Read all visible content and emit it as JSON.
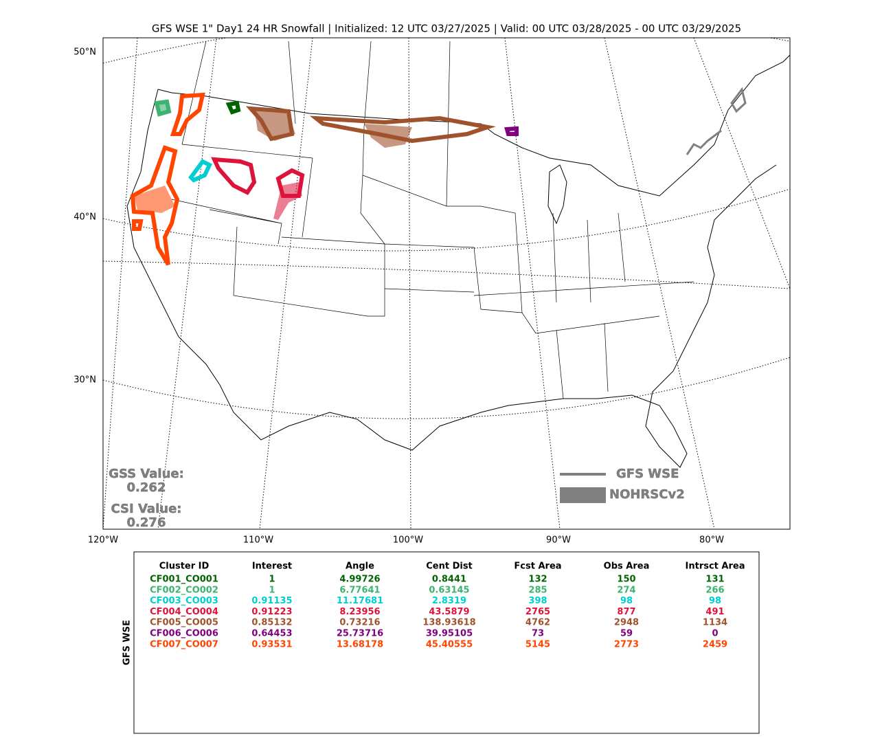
{
  "title": "GFS WSE 1\" Day1 24 HR Snowfall | Initialized: 12 UTC 03/27/2025 | Valid: 00 UTC 03/28/2025 - 00 UTC 03/29/2025",
  "map": {
    "lat_labels": [
      "50°N",
      "40°N",
      "30°N"
    ],
    "lon_labels": [
      "120°W",
      "110°W",
      "100°W",
      "90°W",
      "80°W"
    ]
  },
  "scores": {
    "gss_label": "GSS Value:",
    "gss": "0.262",
    "csi_label": "CSI Value:",
    "csi": "0.276"
  },
  "legend": {
    "forecast": "GFS WSE",
    "observed": "NOHRSCv2",
    "color": "#808080"
  },
  "table": {
    "side_label": "GFS WSE",
    "header": [
      "Cluster ID",
      "Interest",
      "Angle",
      "Cent Dist",
      "Fcst Area",
      "Obs Area",
      "Intrsct Area"
    ],
    "rows": [
      [
        "CF001_CO001",
        "1",
        "4.99726",
        "0.8441",
        "132",
        "150",
        "131"
      ],
      [
        "CF002_CO002",
        "1",
        "6.77641",
        "0.63145",
        "285",
        "274",
        "266"
      ],
      [
        "CF003_CO003",
        "0.91135",
        "11.17681",
        "2.8319",
        "398",
        "98",
        "98"
      ],
      [
        "CF004_CO004",
        "0.91223",
        "8.23956",
        "43.5879",
        "2765",
        "877",
        "491"
      ],
      [
        "CF005_CO005",
        "0.85132",
        "0.73216",
        "138.93618",
        "4762",
        "2948",
        "1134"
      ],
      [
        "CF006_CO006",
        "0.64453",
        "25.73716",
        "39.95105",
        "73",
        "59",
        "0"
      ],
      [
        "CF007_CO007",
        "0.93531",
        "13.68178",
        "45.40555",
        "5145",
        "2773",
        "2459"
      ]
    ],
    "row_colors": [
      "#006400",
      "#3cb371",
      "#00ced1",
      "#dc143c",
      "#a0522d",
      "#800080",
      "#ff4500"
    ]
  }
}
